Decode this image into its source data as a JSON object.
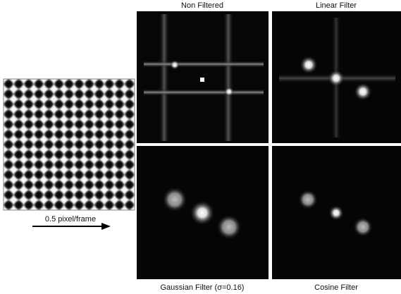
{
  "figure": {
    "input_label": "0.5 pixel/frame",
    "panels": [
      {
        "label": "Non Filtered"
      },
      {
        "label": "Linear Filter"
      },
      {
        "label": "Gaussian Filter (σ=0.16)"
      },
      {
        "label": "Cosine Filter"
      }
    ]
  }
}
